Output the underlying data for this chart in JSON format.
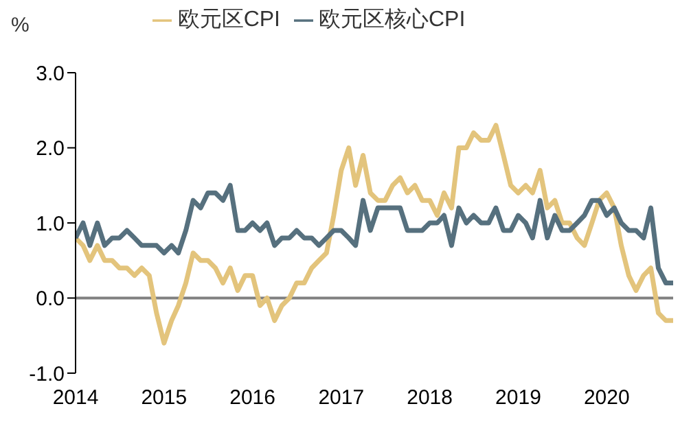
{
  "chart_data": {
    "type": "line",
    "ylabel": "%",
    "legend": "top",
    "x": [
      "2014-01",
      "2014-02",
      "2014-03",
      "2014-04",
      "2014-05",
      "2014-06",
      "2014-07",
      "2014-08",
      "2014-09",
      "2014-10",
      "2014-11",
      "2014-12",
      "2015-01",
      "2015-02",
      "2015-03",
      "2015-04",
      "2015-05",
      "2015-06",
      "2015-07",
      "2015-08",
      "2015-09",
      "2015-10",
      "2015-11",
      "2015-12",
      "2016-01",
      "2016-02",
      "2016-03",
      "2016-04",
      "2016-05",
      "2016-06",
      "2016-07",
      "2016-08",
      "2016-09",
      "2016-10",
      "2016-11",
      "2016-12",
      "2017-01",
      "2017-02",
      "2017-03",
      "2017-04",
      "2017-05",
      "2017-06",
      "2017-07",
      "2017-08",
      "2017-09",
      "2017-10",
      "2017-11",
      "2017-12",
      "2018-01",
      "2018-02",
      "2018-03",
      "2018-04",
      "2018-05",
      "2018-06",
      "2018-07",
      "2018-08",
      "2018-09",
      "2018-10",
      "2018-11",
      "2018-12",
      "2019-01",
      "2019-02",
      "2019-03",
      "2019-04",
      "2019-05",
      "2019-06",
      "2019-07",
      "2019-08",
      "2019-09",
      "2019-10",
      "2019-11",
      "2019-12",
      "2020-01",
      "2020-02",
      "2020-03",
      "2020-04",
      "2020-05",
      "2020-06",
      "2020-07",
      "2020-08",
      "2020-09",
      "2020-10"
    ],
    "series": [
      {
        "name": "欧元区CPI",
        "color": "#e3c47c",
        "values": [
          0.8,
          0.7,
          0.5,
          0.7,
          0.5,
          0.5,
          0.4,
          0.4,
          0.3,
          0.4,
          0.3,
          -0.2,
          -0.6,
          -0.3,
          -0.1,
          0.2,
          0.6,
          0.5,
          0.5,
          0.4,
          0.2,
          0.4,
          0.1,
          0.3,
          0.3,
          -0.1,
          0.0,
          -0.3,
          -0.1,
          0.0,
          0.2,
          0.2,
          0.4,
          0.5,
          0.6,
          1.1,
          1.7,
          2.0,
          1.5,
          1.9,
          1.4,
          1.3,
          1.3,
          1.5,
          1.6,
          1.4,
          1.5,
          1.3,
          1.3,
          1.1,
          1.4,
          1.2,
          2.0,
          2.0,
          2.2,
          2.1,
          2.1,
          2.3,
          1.9,
          1.5,
          1.4,
          1.5,
          1.4,
          1.7,
          1.2,
          1.3,
          1.0,
          1.0,
          0.8,
          0.7,
          1.0,
          1.3,
          1.4,
          1.2,
          0.7,
          0.3,
          0.1,
          0.3,
          0.4,
          -0.2,
          -0.3,
          -0.3
        ]
      },
      {
        "name": "欧元区核心CPI",
        "color": "#56707e",
        "values": [
          0.8,
          1.0,
          0.7,
          1.0,
          0.7,
          0.8,
          0.8,
          0.9,
          0.8,
          0.7,
          0.7,
          0.7,
          0.6,
          0.7,
          0.6,
          0.9,
          1.3,
          1.2,
          1.4,
          1.4,
          1.3,
          1.5,
          0.9,
          0.9,
          1.0,
          0.9,
          1.0,
          0.7,
          0.8,
          0.8,
          0.9,
          0.8,
          0.8,
          0.7,
          0.8,
          0.9,
          0.9,
          0.8,
          0.7,
          1.3,
          0.9,
          1.2,
          1.2,
          1.2,
          1.2,
          0.9,
          0.9,
          0.9,
          1.0,
          1.0,
          1.1,
          0.7,
          1.2,
          1.0,
          1.1,
          1.0,
          1.0,
          1.2,
          0.9,
          0.9,
          1.1,
          1.0,
          0.8,
          1.3,
          0.8,
          1.1,
          0.9,
          0.9,
          1.0,
          1.1,
          1.3,
          1.3,
          1.1,
          1.2,
          1.0,
          0.9,
          0.9,
          0.8,
          1.2,
          0.4,
          0.2,
          0.2
        ]
      }
    ],
    "xlim": [
      "2014-01",
      "2020-10"
    ],
    "xticks": [
      {
        "value": "2014-01",
        "label": "2014"
      },
      {
        "value": "2015-01",
        "label": "2015"
      },
      {
        "value": "2016-01",
        "label": "2016"
      },
      {
        "value": "2017-01",
        "label": "2017"
      },
      {
        "value": "2018-01",
        "label": "2018"
      },
      {
        "value": "2019-01",
        "label": "2019"
      },
      {
        "value": "2020-01",
        "label": "2020"
      }
    ],
    "ylim": [
      -1,
      3
    ],
    "yticks": [
      {
        "value": -1,
        "label": "-1.0"
      },
      {
        "value": 0,
        "label": "0.0"
      },
      {
        "value": 1,
        "label": "1.0"
      },
      {
        "value": 2,
        "label": "2.0"
      },
      {
        "value": 3,
        "label": "3.0"
      }
    ],
    "ref_lines": [
      {
        "axis": "y",
        "value": 0,
        "color": "#808080"
      }
    ],
    "grid": false,
    "marker": "none",
    "line_style": "solid"
  }
}
